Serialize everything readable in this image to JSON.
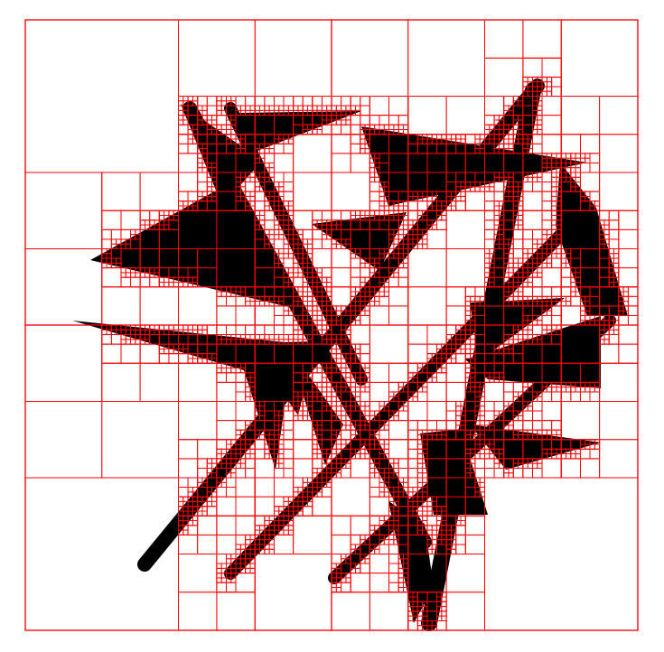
{
  "diagram": {
    "kind": "quadtree-decomposition",
    "colors": {
      "background": "#ffffff",
      "fill": "#000000",
      "cell_outline": "#ff0000"
    },
    "max_subdivision_depth": 7,
    "shapes": [
      {
        "name": "top-left-wedge",
        "icon": "black-triangle"
      },
      {
        "name": "top-band",
        "icon": "black-triangle"
      },
      {
        "name": "upper-right-band",
        "icon": "black-triangle"
      },
      {
        "name": "left-wedge",
        "icon": "black-triangle"
      },
      {
        "name": "center-wedge",
        "icon": "black-triangle"
      },
      {
        "name": "right-long-triangle",
        "icon": "black-triangle"
      },
      {
        "name": "left-lower-wedge",
        "icon": "black-triangle"
      },
      {
        "name": "center-lower-triangle",
        "icon": "black-triangle"
      },
      {
        "name": "right-middle-wedge",
        "icon": "black-triangle"
      },
      {
        "name": "right-lower-wedge",
        "icon": "black-triangle"
      },
      {
        "name": "bottom-right-wedge",
        "icon": "black-triangle"
      },
      {
        "name": "bottom-center-triangle",
        "icon": "black-triangle"
      },
      {
        "name": "middle-left-wedge",
        "icon": "black-triangle"
      },
      {
        "name": "bottom-spike",
        "icon": "black-triangle"
      }
    ],
    "strokes": [
      {
        "name": "diagonal-stroke-1"
      },
      {
        "name": "diagonal-stroke-2"
      },
      {
        "name": "diagonal-stroke-3"
      },
      {
        "name": "diagonal-stroke-4"
      },
      {
        "name": "diagonal-stroke-5"
      },
      {
        "name": "diagonal-stroke-6"
      }
    ]
  }
}
